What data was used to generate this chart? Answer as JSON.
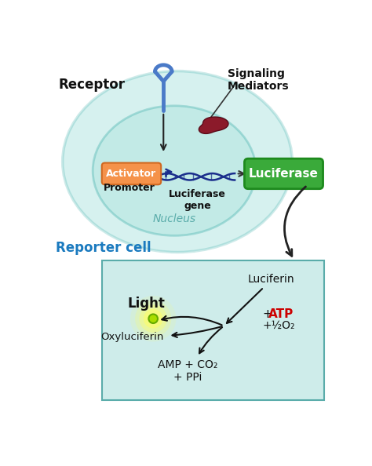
{
  "bg_color": "#ffffff",
  "cell_outer_color": "#5cc8c0",
  "cell_outer_edge": "#3aada8",
  "cell_inner_color": "#9dddd8",
  "cell_inner_edge": "#3aada8",
  "activator_color": "#f5924a",
  "activator_edge": "#d06820",
  "activator_text": "Activator",
  "luciferase_box_color": "#3aaa3a",
  "luciferase_edge": "#1e8a1e",
  "luciferase_text": "Luciferase",
  "dna_color": "#1a2e8c",
  "arrow_color": "#222222",
  "reporter_cell_text": "Reporter cell",
  "reporter_cell_color": "#1a7abf",
  "receptor_text": "Receptor",
  "receptor_color": "#4a7ac8",
  "signaling_text": "Signaling\nMediators",
  "promoter_text": "Promoter",
  "luciferase_gene_text": "Luciferase\ngene",
  "nucleus_text": "Nucleus",
  "nucleus_text_color": "#5aacaa",
  "box_bg_color": "#ceecea",
  "box_border_color": "#5aacaa",
  "light_text": "Light",
  "luciferin_text": "Luciferin",
  "oxyluciferin_text": "Oxyluciferin",
  "amp_text": "AMP + CO₂\n+ PPi",
  "atp_text": "+ATP",
  "atp_color": "#cc0000",
  "o2_text": "+½O₂",
  "glow_color": "#ffff66",
  "circle_fill": "#aadd00",
  "circle_edge": "#66aa00",
  "protein_color": "#8b1a2a",
  "protein_edge": "#5a0a18"
}
